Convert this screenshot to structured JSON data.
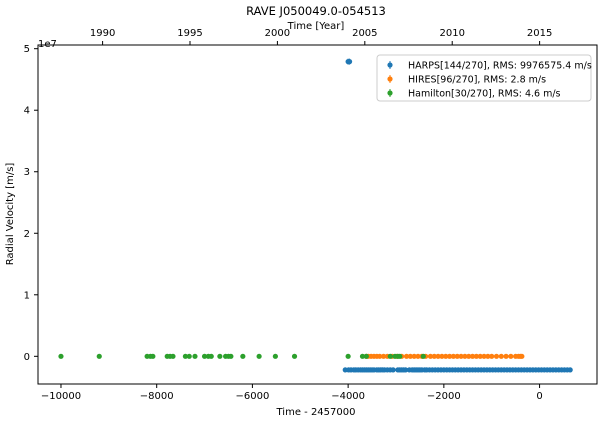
{
  "chart_data": {
    "type": "scatter",
    "title": "RAVE J050049.0-054513",
    "xlabel": "Time - 2457000",
    "ylabel": "Radial Velocity [m/s]",
    "x2label": "Time [Year]",
    "offset_label": "1e7",
    "xlim": [
      -10480,
      1200
    ],
    "ylim": [
      -0.45,
      5.06
    ],
    "x_ticks": [
      -10000,
      -8000,
      -6000,
      -4000,
      -2000,
      0
    ],
    "x_tick_labels": [
      "−10000",
      "−8000",
      "−6000",
      "−4000",
      "−2000",
      "0"
    ],
    "y_ticks": [
      0,
      1,
      2,
      3,
      4,
      5
    ],
    "y_tick_labels": [
      "0",
      "1",
      "2",
      "3",
      "4",
      "5"
    ],
    "year_ticks": [
      1990,
      1995,
      2000,
      2005,
      2010,
      2015
    ],
    "year_tick_labels": [
      "1990",
      "1995",
      "2000",
      "2005",
      "2010",
      "2015"
    ],
    "legend_position": "top-right",
    "series": [
      {
        "name": "HARPS[144/270], RMS: 9976575.4 m/s",
        "color": "#1f77b4",
        "x": [
          -4060,
          -3990,
          -3940,
          -3880,
          -3840,
          -3790,
          -3740,
          -3700,
          -3660,
          -3620,
          -3580,
          -3540,
          -3500,
          -3460,
          -3400,
          -3360,
          -3320,
          -3280,
          -3240,
          -3180,
          -3120,
          -3060,
          -2960,
          -2920,
          -2880,
          -2840,
          -2800,
          -2720,
          -2660,
          -2620,
          -2580,
          -2540,
          -2500,
          -2460,
          -2400,
          -2360,
          -2300,
          -2240,
          -2180,
          -2120,
          -2060,
          -2000,
          -1940,
          -1880,
          -1820,
          -1760,
          -1700,
          -1640,
          -1580,
          -1520,
          -1460,
          -1400,
          -1340,
          -1280,
          -1220,
          -1160,
          -1100,
          -1040,
          -980,
          -920,
          -860,
          -800,
          -740,
          -680,
          -620,
          -560,
          -500,
          -440,
          -380,
          -320,
          -260,
          -200,
          -140,
          -80,
          -20,
          40,
          100,
          160,
          220,
          280,
          340,
          400,
          460,
          520,
          580,
          640
        ],
        "y": [
          -0.22,
          -0.22,
          -0.22,
          -0.22,
          -0.22,
          -0.22,
          -0.22,
          -0.22,
          -0.22,
          -0.22,
          -0.22,
          -0.22,
          -0.22,
          -0.22,
          -0.22,
          -0.22,
          -0.22,
          -0.22,
          -0.22,
          -0.22,
          -0.22,
          -0.22,
          -0.22,
          -0.22,
          -0.22,
          -0.22,
          -0.22,
          -0.22,
          -0.22,
          -0.22,
          -0.22,
          -0.22,
          -0.22,
          -0.22,
          -0.22,
          -0.22,
          -0.22,
          -0.22,
          -0.22,
          -0.22,
          -0.22,
          -0.22,
          -0.22,
          -0.22,
          -0.22,
          -0.22,
          -0.22,
          -0.22,
          -0.22,
          -0.22,
          -0.22,
          -0.22,
          -0.22,
          -0.22,
          -0.22,
          -0.22,
          -0.22,
          -0.22,
          -0.22,
          -0.22,
          -0.22,
          -0.22,
          -0.22,
          -0.22,
          -0.22,
          -0.22,
          -0.22,
          -0.22,
          -0.22,
          -0.22,
          -0.22,
          -0.22,
          -0.22,
          -0.22,
          -0.22,
          -0.22,
          -0.22,
          -0.22,
          -0.22,
          -0.22,
          -0.22,
          -0.22,
          -0.22,
          -0.22,
          -0.22,
          -0.22
        ],
        "outliers_x": [
          -4000,
          -3970
        ],
        "outliers_y": [
          4.79,
          4.79
        ]
      },
      {
        "name": "HIRES[96/270], RMS:      2.8 m/s",
        "color": "#ff7f0e",
        "x": [
          -3620,
          -3580,
          -3520,
          -3460,
          -3400,
          -3340,
          -3260,
          -3180,
          -3080,
          -2980,
          -2880,
          -2780,
          -2700,
          -2620,
          -2540,
          -2460,
          -2380,
          -2280,
          -2200,
          -2120,
          -2040,
          -1960,
          -1880,
          -1800,
          -1720,
          -1640,
          -1560,
          -1480,
          -1400,
          -1320,
          -1240,
          -1160,
          -1080,
          -1000,
          -900,
          -800,
          -700,
          -600,
          -500,
          -440,
          -400,
          -370
        ],
        "y": [
          0,
          0,
          0,
          0,
          0,
          0,
          0,
          0,
          0,
          0,
          0,
          0,
          0,
          0,
          0,
          0,
          0,
          0,
          0,
          0,
          0,
          0,
          0,
          0,
          0,
          0,
          0,
          0,
          0,
          0,
          0,
          0,
          0,
          0,
          0,
          0,
          0,
          0,
          0,
          0,
          0,
          0
        ]
      },
      {
        "name": "Hamilton[30/270], RMS:      4.6 m/s",
        "color": "#2ca02c",
        "x": [
          -10000,
          -9200,
          -8200,
          -8130,
          -8080,
          -7780,
          -7720,
          -7660,
          -7400,
          -7320,
          -7200,
          -7000,
          -6920,
          -6860,
          -6680,
          -6560,
          -6500,
          -6450,
          -6200,
          -5860,
          -5520,
          -5120,
          -4000,
          -3700,
          -3620,
          -3120,
          -3020,
          -2960,
          -2920,
          -2430
        ],
        "y": [
          0,
          0,
          0,
          0,
          0,
          0,
          0,
          0,
          0,
          0,
          0,
          0,
          0,
          0,
          0,
          0,
          0,
          0,
          0,
          0,
          0,
          0,
          0,
          0,
          0,
          0,
          0,
          0,
          0,
          0
        ]
      }
    ]
  }
}
